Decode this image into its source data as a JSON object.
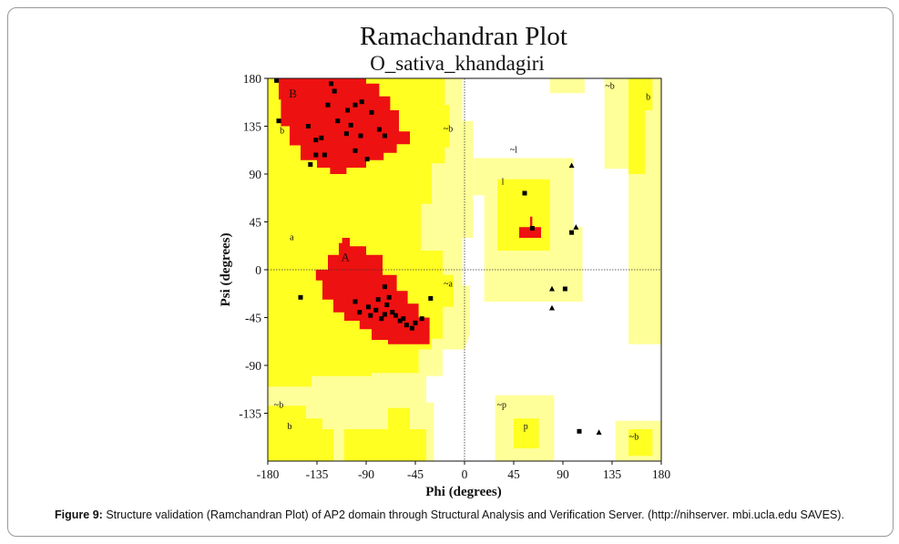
{
  "chart_data": {
    "type": "scatter",
    "title": "Ramachandran Plot",
    "subtitle": "O_sativa_khandagiri",
    "xlabel": "Phi (degrees)",
    "ylabel": "Psi (degrees)",
    "xlim": [
      -180,
      180
    ],
    "ylim": [
      -180,
      180
    ],
    "xticks": [
      -180,
      -135,
      -90,
      -45,
      0,
      45,
      90,
      135,
      180
    ],
    "yticks": [
      180,
      135,
      90,
      45,
      0,
      -45,
      -90,
      -135
    ],
    "grid": false,
    "colors": {
      "core": "#ee1111",
      "allowed": "#ffff22",
      "generous": "#ffff99",
      "background": "#ffffff",
      "marker": "#000000"
    },
    "region_labels": [
      {
        "text": "B",
        "x": -157,
        "y": 162
      },
      {
        "text": "b",
        "x": -167,
        "y": 128
      },
      {
        "text": "~b",
        "x": -15,
        "y": 130
      },
      {
        "text": "~b",
        "x": 133,
        "y": 170
      },
      {
        "text": "b",
        "x": 168,
        "y": 160
      },
      {
        "text": "~l",
        "x": 45,
        "y": 110
      },
      {
        "text": "l",
        "x": 35,
        "y": 80
      },
      {
        "text": "a",
        "x": -158,
        "y": 28
      },
      {
        "text": "A",
        "x": -109,
        "y": 8
      },
      {
        "text": "~a",
        "x": -15,
        "y": -16
      },
      {
        "text": "~b",
        "x": -170,
        "y": -130
      },
      {
        "text": "b",
        "x": -160,
        "y": -150
      },
      {
        "text": "~p",
        "x": 34,
        "y": -130
      },
      {
        "text": "p",
        "x": 56,
        "y": -150
      },
      {
        "text": "~b",
        "x": 155,
        "y": -160
      }
    ],
    "points": [
      [
        -172,
        178
      ],
      [
        -170,
        140
      ],
      [
        -122,
        175
      ],
      [
        -119,
        168
      ],
      [
        -125,
        155
      ],
      [
        -116,
        140
      ],
      [
        -143,
        135
      ],
      [
        -136,
        122
      ],
      [
        -136,
        108
      ],
      [
        -128,
        108
      ],
      [
        -141,
        99
      ],
      [
        -131,
        124
      ],
      [
        -107,
        150
      ],
      [
        -100,
        155
      ],
      [
        -94,
        158
      ],
      [
        -108,
        128
      ],
      [
        -104,
        136
      ],
      [
        -95,
        126
      ],
      [
        -85,
        148
      ],
      [
        -78,
        132
      ],
      [
        -73,
        126
      ],
      [
        -89,
        104
      ],
      [
        -100,
        112
      ],
      [
        -100,
        -30
      ],
      [
        -96,
        -40
      ],
      [
        -88,
        -35
      ],
      [
        -86,
        -43
      ],
      [
        -81,
        -38
      ],
      [
        -79,
        -28
      ],
      [
        -76,
        -46
      ],
      [
        -73,
        -42
      ],
      [
        -71,
        -33
      ],
      [
        -69,
        -26
      ],
      [
        -66,
        -40
      ],
      [
        -63,
        -43
      ],
      [
        -59,
        -48
      ],
      [
        -56,
        -46
      ],
      [
        -53,
        -52
      ],
      [
        -48,
        -55
      ],
      [
        -45,
        -50
      ],
      [
        -39,
        -46
      ],
      [
        -73,
        -16
      ],
      [
        -31,
        -27
      ],
      [
        -150,
        -26
      ],
      [
        55,
        72
      ],
      [
        62,
        39
      ],
      [
        98,
        35
      ],
      [
        92,
        -18
      ],
      [
        105,
        -152
      ]
    ],
    "glycine_points": [
      [
        98,
        98
      ],
      [
        102,
        40
      ],
      [
        80,
        -18
      ],
      [
        80,
        -36
      ],
      [
        123,
        -153
      ]
    ]
  },
  "caption": {
    "label": "Figure 9:",
    "text": "Structure validation (Ramchandran Plot) of AP2 domain through Structural Analysis and Verification Server. (http://nihserver. mbi.ucla.edu SAVES)."
  }
}
